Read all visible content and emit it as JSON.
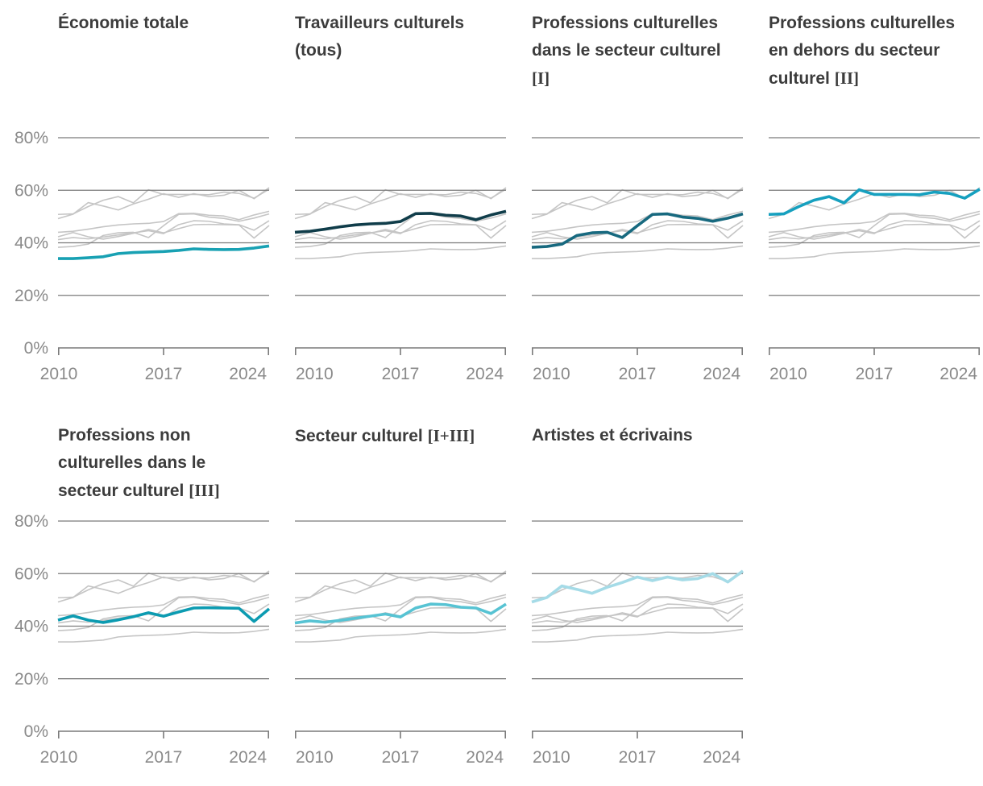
{
  "chart_data": {
    "type": "line",
    "layout": "small multiples, 2 rows x 4 columns, 7 panels",
    "x": [
      2010,
      2011,
      2012,
      2013,
      2014,
      2015,
      2016,
      2017,
      2018,
      2019,
      2020,
      2021,
      2022,
      2023,
      2024
    ],
    "x_tick_labels": [
      "2010",
      "2017",
      "2024"
    ],
    "x_tick_years": [
      2010,
      2017,
      2024
    ],
    "ylim": [
      0,
      80
    ],
    "y_ticks": [
      {
        "value": 80,
        "label": "80%"
      },
      {
        "value": 60,
        "label": "60%"
      },
      {
        "value": 40,
        "label": "40%"
      },
      {
        "value": 20,
        "label": "20%"
      },
      {
        "value": 0,
        "label": "0%"
      }
    ],
    "grid_values": [
      80,
      60,
      40,
      20
    ],
    "background_series_color": "#c5c5c5",
    "gridline_color": "#7a7a7a",
    "axis_color": "#7a7a7a",
    "tick_label_color": "#8a8a8a",
    "title_color": "#3c3c3c",
    "series": [
      {
        "id": "economie-totale",
        "label": "Économie totale",
        "label_roman": "",
        "color": "#18a1b3",
        "values": [
          34.0,
          34.0,
          34.3,
          34.7,
          35.9,
          36.3,
          36.5,
          36.7,
          37.1,
          37.7,
          37.5,
          37.4,
          37.5,
          38.0,
          38.8
        ]
      },
      {
        "id": "travailleurs-culturels",
        "label": "Travailleurs culturels (tous)",
        "label_roman": "",
        "color": "#103d4a",
        "values": [
          44.0,
          44.4,
          45.2,
          46.1,
          46.8,
          47.2,
          47.4,
          48.1,
          51.1,
          51.2,
          50.5,
          50.2,
          48.8,
          50.6,
          52.0
        ]
      },
      {
        "id": "professions-culturelles-secteur-culturel",
        "label": "Professions culturelles dans le secteur culturel",
        "label_roman": "[I]",
        "color": "#17697f",
        "values": [
          38.3,
          38.6,
          39.5,
          42.8,
          43.8,
          44.0,
          42.0,
          46.5,
          50.8,
          51.0,
          49.8,
          49.3,
          48.2,
          49.4,
          51.0
        ]
      },
      {
        "id": "professions-culturelles-hors-secteur",
        "label": "Professions culturelles en dehors du secteur culturel",
        "label_roman": "[II]",
        "color": "#16a0bf",
        "values": [
          50.8,
          51.0,
          53.8,
          56.2,
          57.6,
          55.2,
          60.2,
          58.4,
          58.4,
          58.4,
          58.3,
          59.3,
          58.8,
          57.0,
          60.4
        ]
      },
      {
        "id": "professions-non-culturelles-secteur",
        "label": "Professions non culturelles dans le secteur culturel",
        "label_roman": "[III]",
        "color": "#0c9bb1",
        "values": [
          42.3,
          43.9,
          42.3,
          41.4,
          42.4,
          43.6,
          45.1,
          43.8,
          45.4,
          46.9,
          47.0,
          46.9,
          46.8,
          41.8,
          46.6
        ]
      },
      {
        "id": "secteur-culturel",
        "label": "Secteur culturel",
        "label_roman": "[I+III]",
        "color": "#57c3d3",
        "values": [
          41.2,
          42.0,
          41.5,
          42.2,
          43.0,
          43.8,
          44.6,
          43.5,
          46.9,
          48.4,
          48.2,
          47.2,
          46.9,
          44.8,
          48.4
        ]
      },
      {
        "id": "artistes-et-ecrivains",
        "label": "Artistes et écrivains",
        "label_roman": "",
        "color": "#a5dbe7",
        "values": [
          49.2,
          50.9,
          55.3,
          54.0,
          52.5,
          54.8,
          56.6,
          58.7,
          57.3,
          58.7,
          57.6,
          58.1,
          60.0,
          56.8,
          61.0
        ]
      }
    ],
    "panel_order": [
      "economie-totale",
      "travailleurs-culturels",
      "professions-culturelles-secteur-culturel",
      "professions-culturelles-hors-secteur",
      "professions-non-culturelles-secteur",
      "secteur-culturel",
      "artistes-et-ecrivains"
    ]
  }
}
